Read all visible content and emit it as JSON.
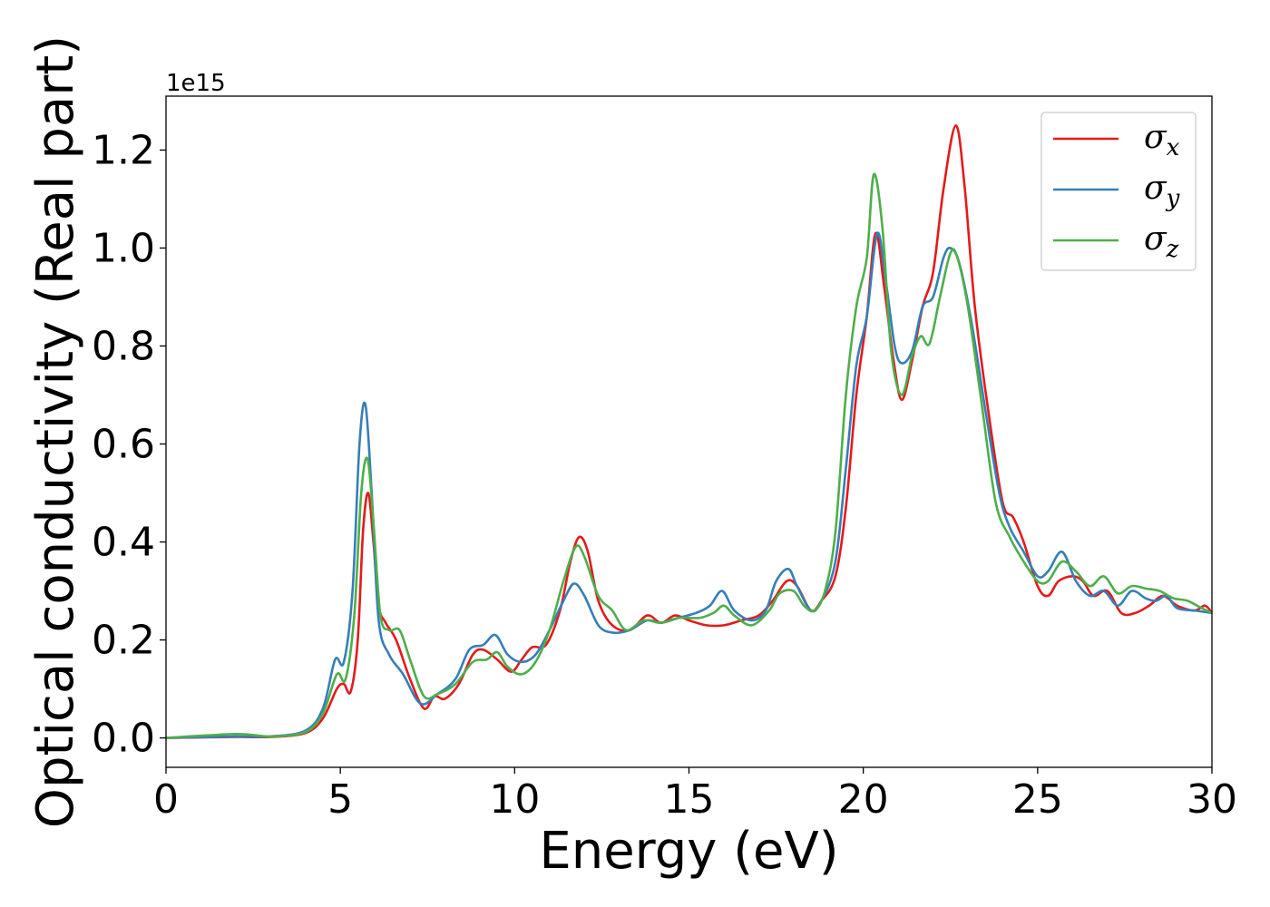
{
  "chart_data": {
    "type": "line",
    "xlabel": "Energy (eV)",
    "ylabel": "Optical conductivity (Real part)",
    "y_offset_label": "1e15",
    "xlim": [
      0,
      30
    ],
    "ylim": [
      -0.06,
      1.31
    ],
    "xticks": [
      0,
      5,
      10,
      15,
      20,
      25,
      30
    ],
    "yticks": [
      0.0,
      0.2,
      0.4,
      0.6,
      0.8,
      1.0,
      1.2
    ],
    "xtick_labels": [
      "0",
      "5",
      "10",
      "15",
      "20",
      "25",
      "30"
    ],
    "ytick_labels": [
      "0.0",
      "0.2",
      "0.4",
      "0.6",
      "0.8",
      "1.0",
      "1.2"
    ],
    "grid": false,
    "legend_position": "top-right",
    "series": [
      {
        "name": "σx",
        "symbol": "σ",
        "subscript": "x",
        "color": "#e41a1c",
        "points": [
          [
            0,
            0
          ],
          [
            2,
            0.002
          ],
          [
            3,
            0.002
          ],
          [
            4,
            0.01
          ],
          [
            4.5,
            0.04
          ],
          [
            4.9,
            0.1
          ],
          [
            5.1,
            0.11
          ],
          [
            5.3,
            0.095
          ],
          [
            5.5,
            0.2
          ],
          [
            5.65,
            0.42
          ],
          [
            5.8,
            0.5
          ],
          [
            5.95,
            0.4
          ],
          [
            6.1,
            0.27
          ],
          [
            6.3,
            0.235
          ],
          [
            6.6,
            0.2
          ],
          [
            7.0,
            0.12
          ],
          [
            7.4,
            0.06
          ],
          [
            7.7,
            0.085
          ],
          [
            8.0,
            0.08
          ],
          [
            8.4,
            0.11
          ],
          [
            8.8,
            0.17
          ],
          [
            9.1,
            0.18
          ],
          [
            9.5,
            0.16
          ],
          [
            9.9,
            0.135
          ],
          [
            10.2,
            0.16
          ],
          [
            10.5,
            0.185
          ],
          [
            10.9,
            0.19
          ],
          [
            11.3,
            0.26
          ],
          [
            11.6,
            0.36
          ],
          [
            11.85,
            0.41
          ],
          [
            12.1,
            0.38
          ],
          [
            12.4,
            0.28
          ],
          [
            12.8,
            0.23
          ],
          [
            13.3,
            0.22
          ],
          [
            13.8,
            0.25
          ],
          [
            14.2,
            0.235
          ],
          [
            14.6,
            0.25
          ],
          [
            15.0,
            0.24
          ],
          [
            15.5,
            0.23
          ],
          [
            16.0,
            0.23
          ],
          [
            16.5,
            0.24
          ],
          [
            17.0,
            0.25
          ],
          [
            17.4,
            0.28
          ],
          [
            17.8,
            0.32
          ],
          [
            18.1,
            0.31
          ],
          [
            18.5,
            0.26
          ],
          [
            18.8,
            0.28
          ],
          [
            19.2,
            0.33
          ],
          [
            19.5,
            0.47
          ],
          [
            19.8,
            0.7
          ],
          [
            20.1,
            0.86
          ],
          [
            20.35,
            1.03
          ],
          [
            20.6,
            0.92
          ],
          [
            20.85,
            0.78
          ],
          [
            21.1,
            0.69
          ],
          [
            21.4,
            0.77
          ],
          [
            21.7,
            0.88
          ],
          [
            22.0,
            0.95
          ],
          [
            22.3,
            1.12
          ],
          [
            22.65,
            1.25
          ],
          [
            22.9,
            1.13
          ],
          [
            23.2,
            0.88
          ],
          [
            23.6,
            0.66
          ],
          [
            24.0,
            0.48
          ],
          [
            24.3,
            0.45
          ],
          [
            24.6,
            0.4
          ],
          [
            25.0,
            0.31
          ],
          [
            25.3,
            0.29
          ],
          [
            25.6,
            0.32
          ],
          [
            26.0,
            0.33
          ],
          [
            26.3,
            0.32
          ],
          [
            26.6,
            0.29
          ],
          [
            27.0,
            0.3
          ],
          [
            27.4,
            0.255
          ],
          [
            27.8,
            0.255
          ],
          [
            28.2,
            0.27
          ],
          [
            28.6,
            0.29
          ],
          [
            29.0,
            0.27
          ],
          [
            29.5,
            0.26
          ],
          [
            29.8,
            0.27
          ],
          [
            30,
            0.255
          ]
        ]
      },
      {
        "name": "σy",
        "symbol": "σ",
        "subscript": "y",
        "color": "#377eb8",
        "points": [
          [
            0,
            0
          ],
          [
            2,
            0.003
          ],
          [
            3,
            0.003
          ],
          [
            4,
            0.015
          ],
          [
            4.5,
            0.06
          ],
          [
            4.85,
            0.16
          ],
          [
            5.1,
            0.155
          ],
          [
            5.35,
            0.3
          ],
          [
            5.55,
            0.6
          ],
          [
            5.72,
            0.68
          ],
          [
            5.9,
            0.5
          ],
          [
            6.1,
            0.24
          ],
          [
            6.4,
            0.17
          ],
          [
            6.8,
            0.13
          ],
          [
            7.3,
            0.07
          ],
          [
            7.8,
            0.09
          ],
          [
            8.3,
            0.12
          ],
          [
            8.7,
            0.18
          ],
          [
            9.1,
            0.19
          ],
          [
            9.45,
            0.21
          ],
          [
            9.8,
            0.17
          ],
          [
            10.2,
            0.155
          ],
          [
            10.6,
            0.17
          ],
          [
            11.0,
            0.22
          ],
          [
            11.4,
            0.28
          ],
          [
            11.7,
            0.315
          ],
          [
            12.0,
            0.29
          ],
          [
            12.4,
            0.23
          ],
          [
            12.8,
            0.215
          ],
          [
            13.3,
            0.22
          ],
          [
            13.8,
            0.24
          ],
          [
            14.2,
            0.235
          ],
          [
            14.7,
            0.245
          ],
          [
            15.2,
            0.255
          ],
          [
            15.6,
            0.27
          ],
          [
            15.95,
            0.3
          ],
          [
            16.3,
            0.26
          ],
          [
            16.8,
            0.24
          ],
          [
            17.2,
            0.26
          ],
          [
            17.5,
            0.32
          ],
          [
            17.85,
            0.345
          ],
          [
            18.1,
            0.31
          ],
          [
            18.5,
            0.26
          ],
          [
            18.8,
            0.28
          ],
          [
            19.2,
            0.36
          ],
          [
            19.5,
            0.55
          ],
          [
            19.8,
            0.76
          ],
          [
            20.1,
            0.86
          ],
          [
            20.4,
            1.03
          ],
          [
            20.65,
            0.93
          ],
          [
            20.9,
            0.8
          ],
          [
            21.1,
            0.765
          ],
          [
            21.4,
            0.79
          ],
          [
            21.7,
            0.88
          ],
          [
            22.0,
            0.9
          ],
          [
            22.3,
            0.98
          ],
          [
            22.5,
            1.0
          ],
          [
            22.75,
            0.97
          ],
          [
            23.1,
            0.85
          ],
          [
            23.5,
            0.67
          ],
          [
            23.9,
            0.5
          ],
          [
            24.2,
            0.43
          ],
          [
            24.6,
            0.38
          ],
          [
            25.0,
            0.33
          ],
          [
            25.3,
            0.34
          ],
          [
            25.7,
            0.38
          ],
          [
            26.1,
            0.32
          ],
          [
            26.5,
            0.29
          ],
          [
            26.9,
            0.3
          ],
          [
            27.3,
            0.27
          ],
          [
            27.7,
            0.3
          ],
          [
            28.1,
            0.285
          ],
          [
            28.4,
            0.28
          ],
          [
            28.7,
            0.29
          ],
          [
            29.0,
            0.265
          ],
          [
            29.5,
            0.26
          ],
          [
            30,
            0.255
          ]
        ]
      },
      {
        "name": "σz",
        "symbol": "σ",
        "subscript": "z",
        "color": "#4daf4a",
        "points": [
          [
            0,
            0
          ],
          [
            2,
            0.008
          ],
          [
            3,
            0.003
          ],
          [
            4,
            0.012
          ],
          [
            4.5,
            0.05
          ],
          [
            4.9,
            0.13
          ],
          [
            5.15,
            0.12
          ],
          [
            5.4,
            0.25
          ],
          [
            5.6,
            0.5
          ],
          [
            5.78,
            0.57
          ],
          [
            5.95,
            0.44
          ],
          [
            6.15,
            0.25
          ],
          [
            6.4,
            0.22
          ],
          [
            6.7,
            0.22
          ],
          [
            7.0,
            0.16
          ],
          [
            7.4,
            0.085
          ],
          [
            7.8,
            0.09
          ],
          [
            8.3,
            0.11
          ],
          [
            8.8,
            0.155
          ],
          [
            9.2,
            0.16
          ],
          [
            9.5,
            0.175
          ],
          [
            9.8,
            0.145
          ],
          [
            10.2,
            0.13
          ],
          [
            10.6,
            0.155
          ],
          [
            11.0,
            0.22
          ],
          [
            11.4,
            0.32
          ],
          [
            11.75,
            0.39
          ],
          [
            12.0,
            0.37
          ],
          [
            12.4,
            0.29
          ],
          [
            12.8,
            0.26
          ],
          [
            13.2,
            0.22
          ],
          [
            13.7,
            0.24
          ],
          [
            14.2,
            0.235
          ],
          [
            14.7,
            0.245
          ],
          [
            15.3,
            0.245
          ],
          [
            15.7,
            0.255
          ],
          [
            16.0,
            0.27
          ],
          [
            16.3,
            0.25
          ],
          [
            16.8,
            0.23
          ],
          [
            17.3,
            0.26
          ],
          [
            17.6,
            0.295
          ],
          [
            18.0,
            0.3
          ],
          [
            18.3,
            0.27
          ],
          [
            18.6,
            0.26
          ],
          [
            18.9,
            0.3
          ],
          [
            19.2,
            0.42
          ],
          [
            19.5,
            0.7
          ],
          [
            19.8,
            0.88
          ],
          [
            20.1,
            0.98
          ],
          [
            20.3,
            1.15
          ],
          [
            20.55,
            1.04
          ],
          [
            20.8,
            0.79
          ],
          [
            21.1,
            0.7
          ],
          [
            21.4,
            0.78
          ],
          [
            21.65,
            0.82
          ],
          [
            21.9,
            0.805
          ],
          [
            22.2,
            0.9
          ],
          [
            22.5,
            0.99
          ],
          [
            22.7,
            0.98
          ],
          [
            23.0,
            0.88
          ],
          [
            23.4,
            0.68
          ],
          [
            23.8,
            0.48
          ],
          [
            24.2,
            0.41
          ],
          [
            24.6,
            0.36
          ],
          [
            25.0,
            0.32
          ],
          [
            25.3,
            0.32
          ],
          [
            25.7,
            0.36
          ],
          [
            26.1,
            0.34
          ],
          [
            26.5,
            0.31
          ],
          [
            26.9,
            0.33
          ],
          [
            27.3,
            0.295
          ],
          [
            27.7,
            0.31
          ],
          [
            28.1,
            0.305
          ],
          [
            28.5,
            0.3
          ],
          [
            28.9,
            0.285
          ],
          [
            29.3,
            0.28
          ],
          [
            29.7,
            0.265
          ],
          [
            30,
            0.255
          ]
        ]
      }
    ]
  }
}
